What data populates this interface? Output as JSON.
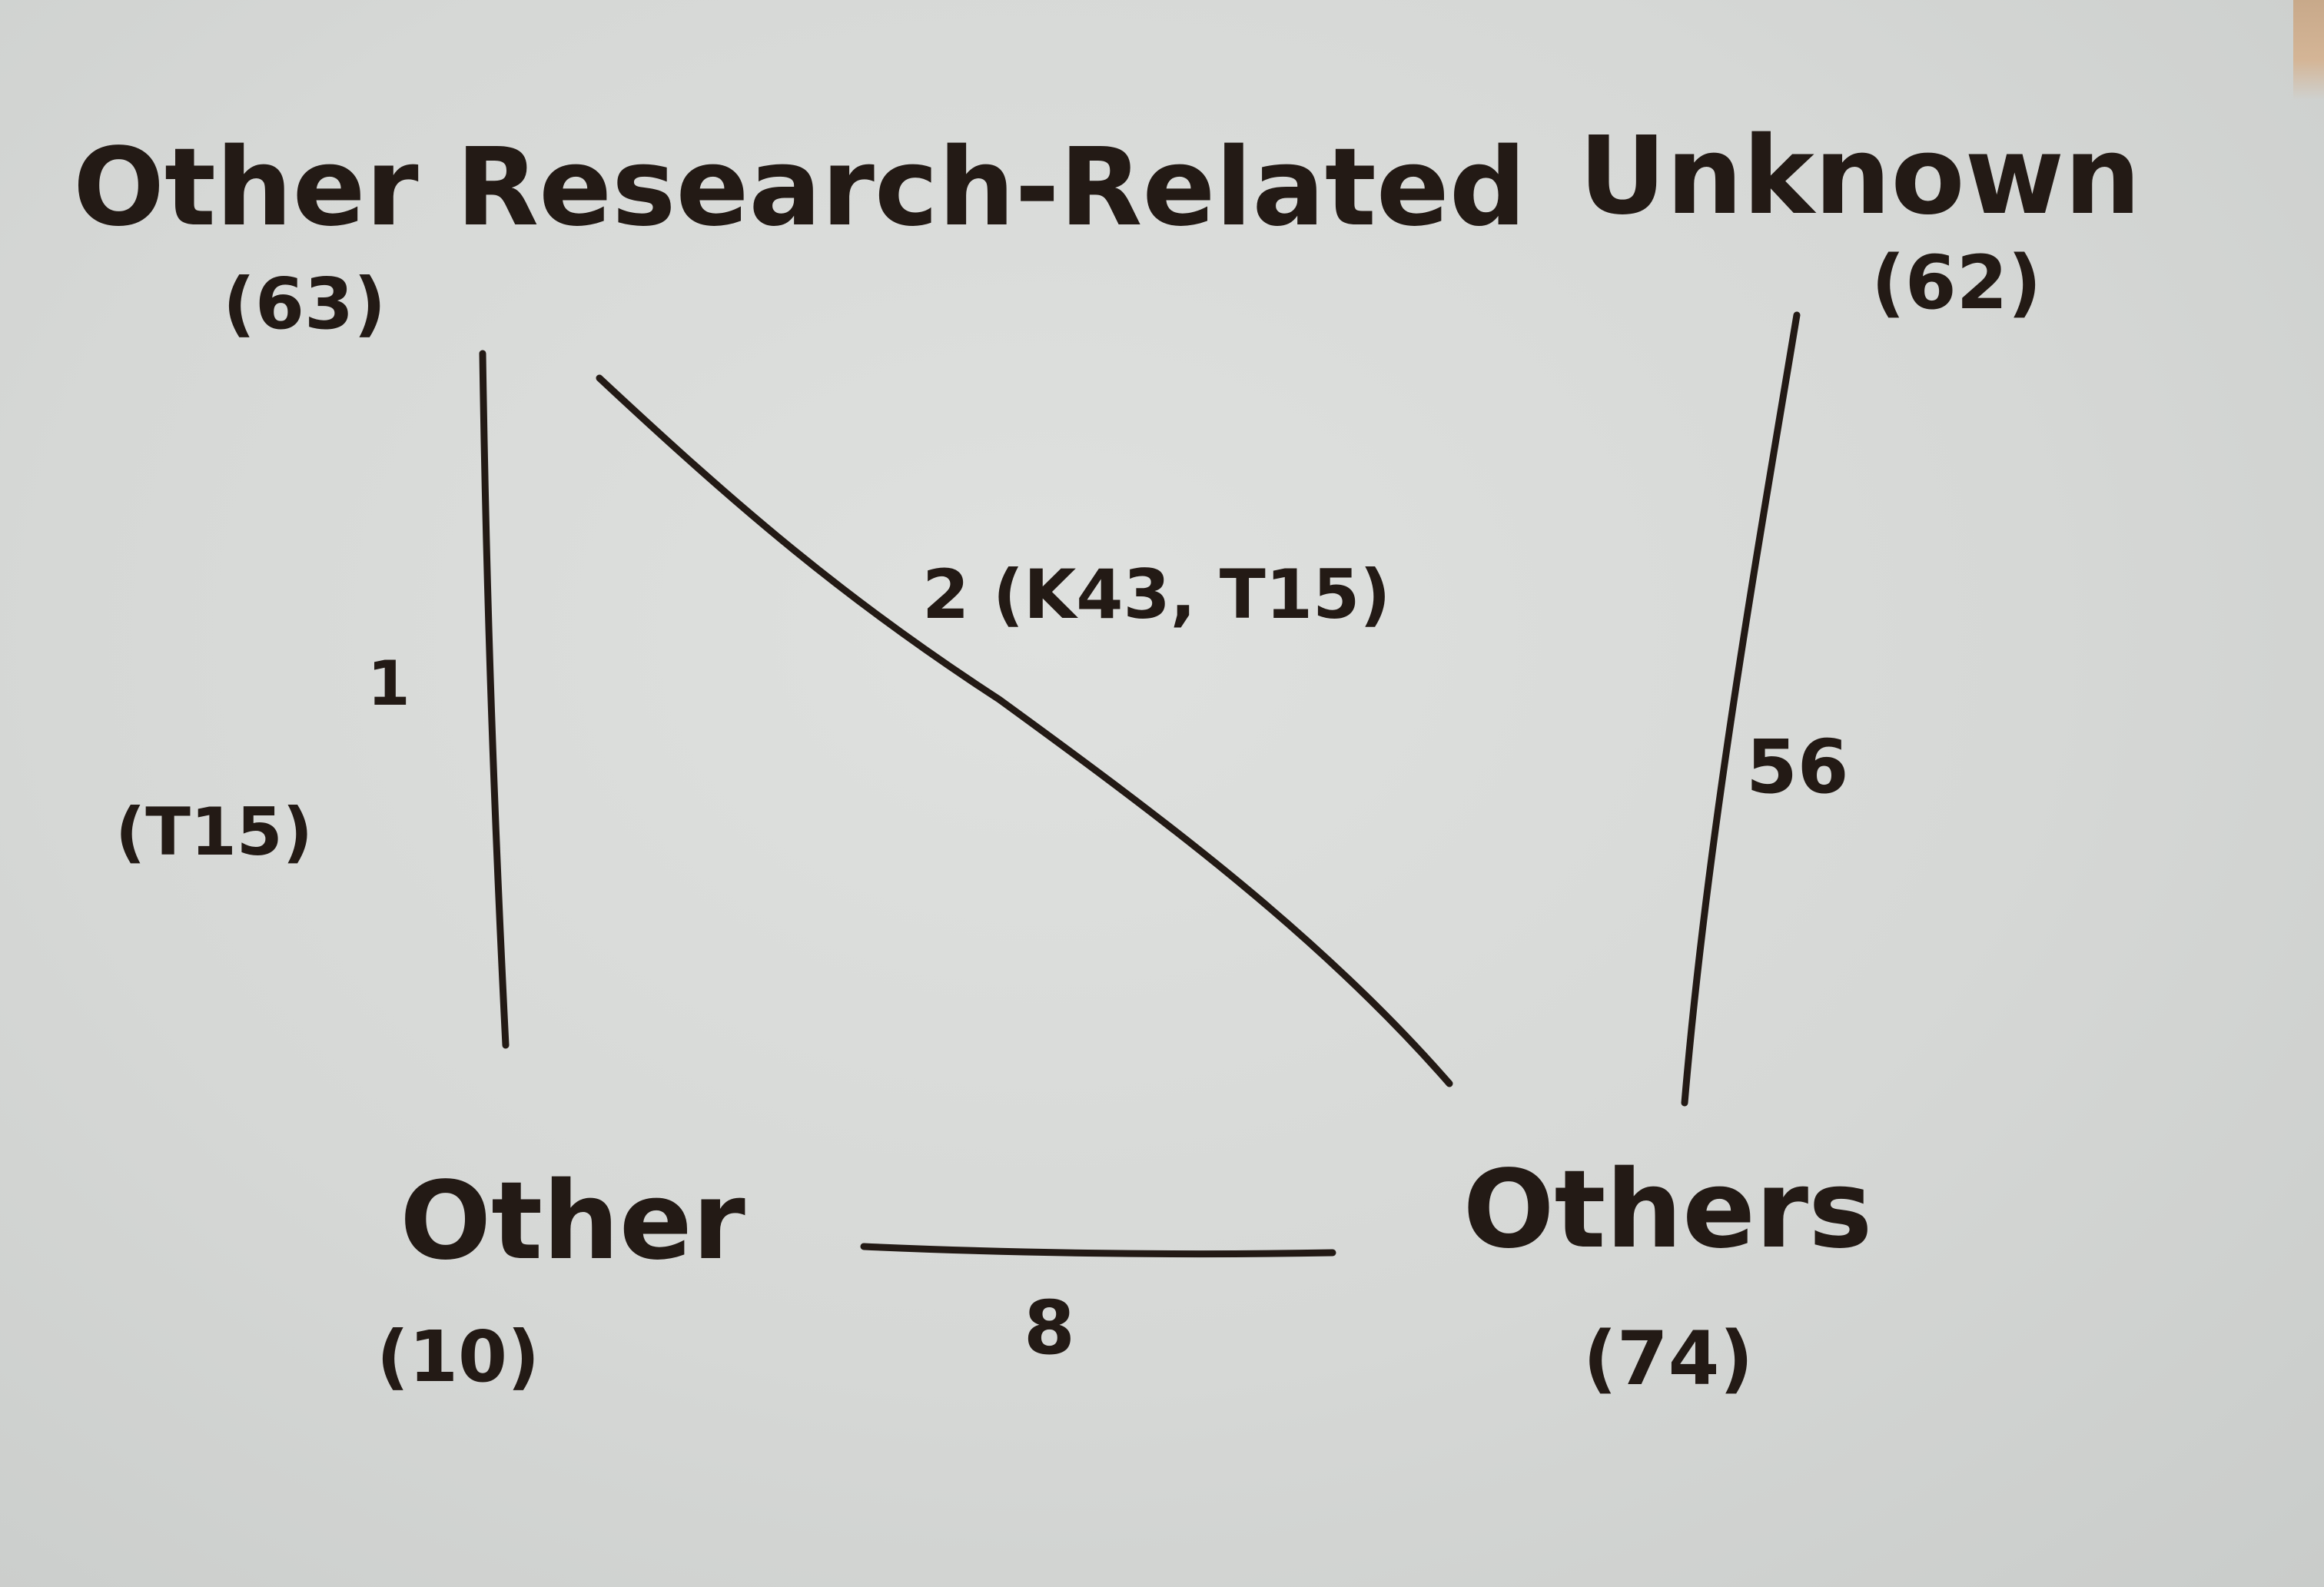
{
  "nodes": {
    "other_research_related": {
      "name": "Other Research-Related",
      "count": "(63)"
    },
    "unknown": {
      "name": "Unknown",
      "count": "(62)"
    },
    "other": {
      "name": "Other",
      "count": "(10)"
    },
    "others": {
      "name": "Others",
      "count": "(74)"
    }
  },
  "edges": {
    "research_to_other": {
      "weight": "1",
      "detail": "(T15)"
    },
    "research_to_others": {
      "label": "2 (K43, T15)"
    },
    "unknown_to_others": {
      "label": "56"
    },
    "other_to_others": {
      "label": "8"
    }
  },
  "colors": {
    "ink": "#231a15",
    "paper": "#d9dbd9"
  }
}
